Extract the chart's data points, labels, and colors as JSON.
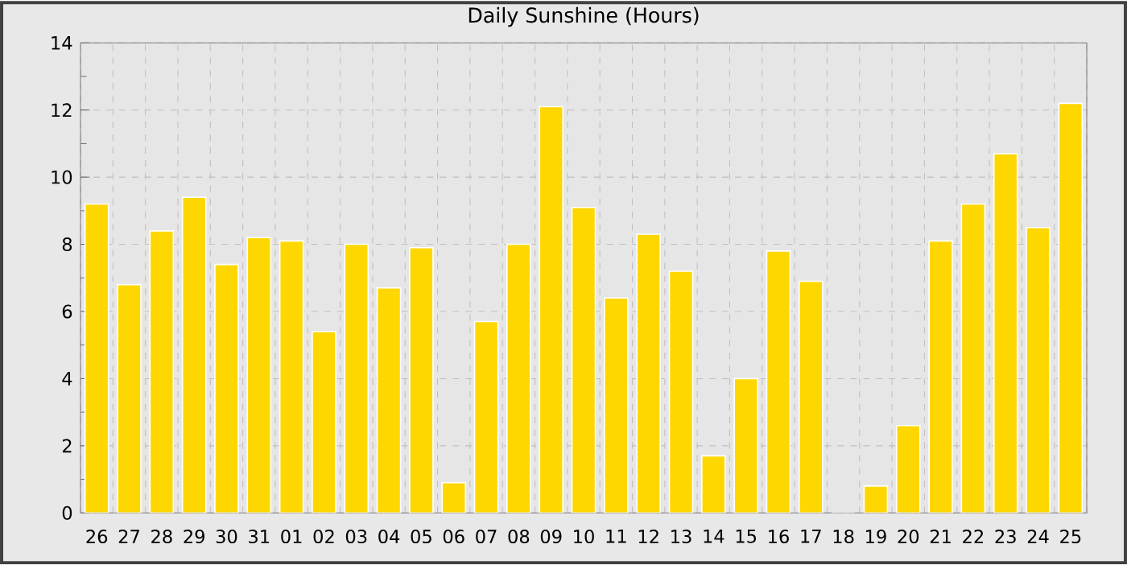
{
  "chart_data": {
    "type": "bar",
    "title": "Daily Sunshine (Hours)",
    "categories": [
      "26",
      "27",
      "28",
      "29",
      "30",
      "31",
      "01",
      "02",
      "03",
      "04",
      "05",
      "06",
      "07",
      "08",
      "09",
      "10",
      "11",
      "12",
      "13",
      "14",
      "15",
      "16",
      "17",
      "18",
      "19",
      "20",
      "21",
      "22",
      "23",
      "24",
      "25"
    ],
    "values": [
      9.2,
      6.8,
      8.4,
      9.4,
      7.4,
      8.2,
      8.1,
      5.4,
      8.0,
      6.7,
      7.9,
      0.9,
      5.7,
      8.0,
      12.1,
      9.1,
      6.4,
      8.3,
      7.2,
      1.7,
      4.0,
      7.8,
      6.9,
      0,
      0.8,
      2.6,
      8.1,
      9.2,
      10.7,
      8.5,
      12.2
    ],
    "color": "#ffd700",
    "ylim": [
      0,
      14
    ],
    "yticks": [
      0,
      {
        "value": 1,
        "label": null
      },
      2,
      {
        "value": 3,
        "label": null
      },
      4,
      {
        "value": 5,
        "label": null
      },
      6,
      {
        "value": 7,
        "label": null
      },
      8,
      {
        "value": 9,
        "label": null
      },
      10,
      {
        "value": 11,
        "label": null
      },
      12,
      {
        "value": 13,
        "label": null
      },
      14
    ],
    "grid": true
  }
}
